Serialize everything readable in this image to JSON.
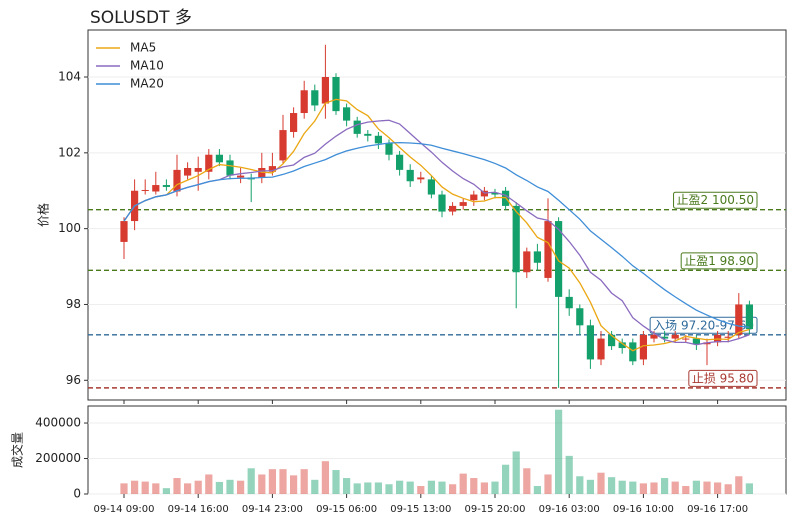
{
  "chart_data": {
    "type": "candlestick",
    "title": "SOLUSDT  多",
    "ylabel": "价格",
    "categories": [
      "09-14 09:00",
      null,
      null,
      null,
      null,
      null,
      null,
      "09-14 16:00",
      null,
      null,
      null,
      null,
      null,
      null,
      "09-14 23:00",
      null,
      null,
      null,
      null,
      null,
      null,
      "09-15 06:00",
      null,
      null,
      null,
      null,
      null,
      null,
      "09-15 13:00",
      null,
      null,
      null,
      null,
      null,
      null,
      "09-15 20:00",
      null,
      null,
      null,
      null,
      null,
      null,
      "09-16 03:00",
      null,
      null,
      null,
      null,
      null,
      null,
      "09-16 10:00",
      null,
      null,
      null,
      null,
      null,
      null,
      "09-16 17:00",
      null,
      null,
      null
    ],
    "open": [
      99.65,
      100.2,
      101.0,
      100.98,
      101.15,
      100.98,
      101.4,
      101.5,
      101.5,
      101.95,
      101.8,
      101.35,
      101.35,
      101.35,
      101.5,
      101.8,
      102.55,
      103.05,
      103.65,
      103.3,
      104.0,
      103.2,
      102.85,
      102.5,
      102.45,
      102.25,
      101.95,
      101.55,
      101.3,
      101.3,
      100.9,
      100.45,
      100.6,
      100.75,
      100.85,
      100.95,
      101.0,
      100.6,
      98.85,
      99.4,
      98.7,
      100.2,
      98.2,
      97.9,
      97.45,
      96.55,
      97.2,
      97.0,
      97.0,
      96.55,
      97.1,
      97.15,
      97.1,
      97.1,
      97.1,
      96.95,
      97.0,
      97.12,
      97.2,
      98.0
    ],
    "high": [
      100.3,
      101.3,
      101.3,
      101.5,
      101.3,
      101.95,
      101.75,
      101.9,
      102.1,
      102.1,
      101.95,
      101.6,
      101.45,
      102.0,
      102.0,
      103.0,
      103.2,
      103.9,
      103.8,
      104.85,
      104.1,
      103.3,
      102.95,
      102.6,
      102.55,
      102.35,
      102.05,
      101.7,
      101.5,
      101.4,
      101.0,
      100.7,
      100.8,
      101.0,
      101.1,
      101.05,
      101.1,
      100.7,
      99.5,
      99.6,
      100.8,
      100.3,
      98.4,
      98.0,
      97.6,
      97.3,
      97.3,
      97.1,
      97.1,
      97.3,
      97.3,
      97.3,
      97.3,
      97.2,
      97.2,
      97.1,
      97.3,
      97.3,
      98.3,
      98.1
    ],
    "low": [
      99.2,
      99.96,
      100.9,
      100.9,
      101.0,
      100.85,
      101.3,
      101.0,
      101.3,
      101.65,
      101.3,
      101.2,
      100.7,
      101.2,
      101.4,
      101.7,
      102.4,
      102.9,
      103.1,
      102.9,
      103.0,
      102.7,
      102.4,
      102.3,
      102.1,
      101.8,
      101.4,
      101.1,
      101.2,
      100.8,
      100.3,
      100.35,
      100.5,
      100.6,
      100.75,
      100.8,
      100.5,
      97.9,
      98.7,
      98.9,
      98.6,
      95.8,
      97.7,
      97.2,
      96.3,
      96.4,
      96.8,
      96.7,
      96.4,
      96.4,
      97.0,
      97.0,
      97.0,
      97.0,
      96.8,
      96.4,
      96.9,
      97.0,
      97.1,
      97.2
    ],
    "close": [
      100.2,
      101.0,
      101.02,
      101.15,
      101.1,
      101.55,
      101.6,
      101.6,
      101.95,
      101.75,
      101.4,
      101.4,
      101.3,
      101.6,
      101.65,
      102.6,
      103.05,
      103.65,
      103.25,
      104.0,
      103.1,
      102.85,
      102.5,
      102.45,
      102.25,
      101.95,
      101.55,
      101.25,
      101.35,
      100.9,
      100.45,
      100.6,
      100.7,
      100.9,
      101.0,
      100.9,
      100.6,
      98.85,
      99.4,
      99.1,
      100.2,
      98.2,
      97.9,
      97.45,
      96.55,
      97.1,
      96.9,
      96.85,
      96.5,
      97.2,
      97.2,
      97.1,
      97.2,
      97.1,
      96.95,
      97.0,
      97.2,
      97.15,
      98.0,
      97.35
    ],
    "up_color": "#d73a2e",
    "down_color": "#14a06a",
    "series": [
      {
        "name": "MA5",
        "color": "#eba713",
        "values": [
          100.2,
          100.6,
          100.74,
          100.84,
          100.89,
          101.16,
          101.28,
          101.4,
          101.56,
          101.69,
          101.66,
          101.62,
          101.56,
          101.49,
          101.47,
          101.71,
          102.04,
          102.51,
          102.84,
          103.31,
          103.41,
          103.37,
          103.14,
          102.98,
          102.63,
          102.4,
          102.14,
          101.89,
          101.67,
          101.4,
          101.1,
          100.91,
          100.8,
          100.71,
          100.73,
          100.82,
          100.82,
          100.45,
          100.15,
          99.77,
          99.63,
          99.15,
          98.96,
          98.57,
          98.06,
          97.44,
          97.18,
          96.97,
          96.78,
          96.91,
          96.93,
          96.97,
          97.04,
          97.16,
          97.11,
          97.07,
          97.09,
          97.08,
          97.26,
          97.34
        ]
      },
      {
        "name": "MA10",
        "color": "#8a6bbf",
        "values": [
          100.2,
          100.6,
          100.74,
          100.84,
          100.89,
          101.0,
          101.09,
          101.16,
          101.24,
          101.29,
          101.41,
          101.45,
          101.48,
          101.52,
          101.53,
          101.63,
          101.68,
          101.88,
          101.99,
          102.23,
          102.44,
          102.62,
          102.74,
          102.81,
          102.84,
          102.86,
          102.76,
          102.51,
          102.26,
          102.02,
          101.75,
          101.52,
          101.32,
          101.17,
          100.94,
          100.96,
          100.88,
          100.68,
          100.47,
          100.28,
          100.22,
          99.98,
          99.66,
          99.3,
          98.85,
          98.64,
          98.3,
          98.1,
          97.65,
          97.43,
          97.24,
          97.07,
          97.0,
          97.0,
          96.94,
          96.99,
          97.02,
          97.02,
          97.1,
          97.2
        ]
      },
      {
        "name": "MA20",
        "color": "#3f8ed8",
        "values": [
          100.2,
          100.6,
          100.74,
          100.84,
          100.89,
          101.0,
          101.09,
          101.16,
          101.24,
          101.29,
          101.32,
          101.33,
          101.33,
          101.35,
          101.36,
          101.43,
          101.52,
          101.64,
          101.73,
          101.82,
          101.95,
          102.05,
          102.12,
          102.18,
          102.22,
          102.26,
          102.27,
          102.26,
          102.24,
          102.2,
          102.12,
          102.05,
          101.98,
          101.9,
          101.82,
          101.72,
          101.6,
          101.42,
          101.27,
          101.1,
          100.98,
          100.75,
          100.5,
          100.25,
          99.94,
          99.72,
          99.5,
          99.27,
          99.02,
          98.82,
          98.6,
          98.39,
          98.2,
          98.02,
          97.85,
          97.72,
          97.6,
          97.5,
          97.43,
          97.4
        ]
      }
    ],
    "ylim": [
      95.48,
      105.24
    ],
    "yticks": [
      96,
      98,
      100,
      102,
      104
    ],
    "grid": true,
    "legend": "upper left",
    "levels": [
      {
        "label": "止盈2 100.50",
        "value": 100.5,
        "color": "#4a7a1e"
      },
      {
        "label": "止盈1 98.90",
        "value": 98.9,
        "color": "#4a7a1e"
      },
      {
        "label": "入场 97.20-97.60",
        "value": 97.2,
        "color": "#2f6a9a"
      },
      {
        "label": "止损 95.80",
        "value": 95.8,
        "color": "#a83a32"
      }
    ],
    "volume": {
      "ylabel": "成交量",
      "values": [
        60000,
        75000,
        70000,
        60000,
        33000,
        90000,
        60000,
        75000,
        110000,
        68000,
        80000,
        75000,
        145000,
        110000,
        140000,
        140000,
        105000,
        140000,
        80000,
        185000,
        135000,
        90000,
        60000,
        65000,
        65000,
        55000,
        75000,
        70000,
        45000,
        75000,
        70000,
        55000,
        115000,
        90000,
        65000,
        70000,
        165000,
        240000,
        145000,
        45000,
        110000,
        475000,
        215000,
        100000,
        80000,
        120000,
        95000,
        75000,
        70000,
        60000,
        65000,
        90000,
        70000,
        45000,
        75000,
        70000,
        65000,
        55000,
        100000,
        60000
      ],
      "ylim": [
        0,
        496000
      ],
      "yticks": [
        0,
        200000,
        400000
      ]
    }
  }
}
